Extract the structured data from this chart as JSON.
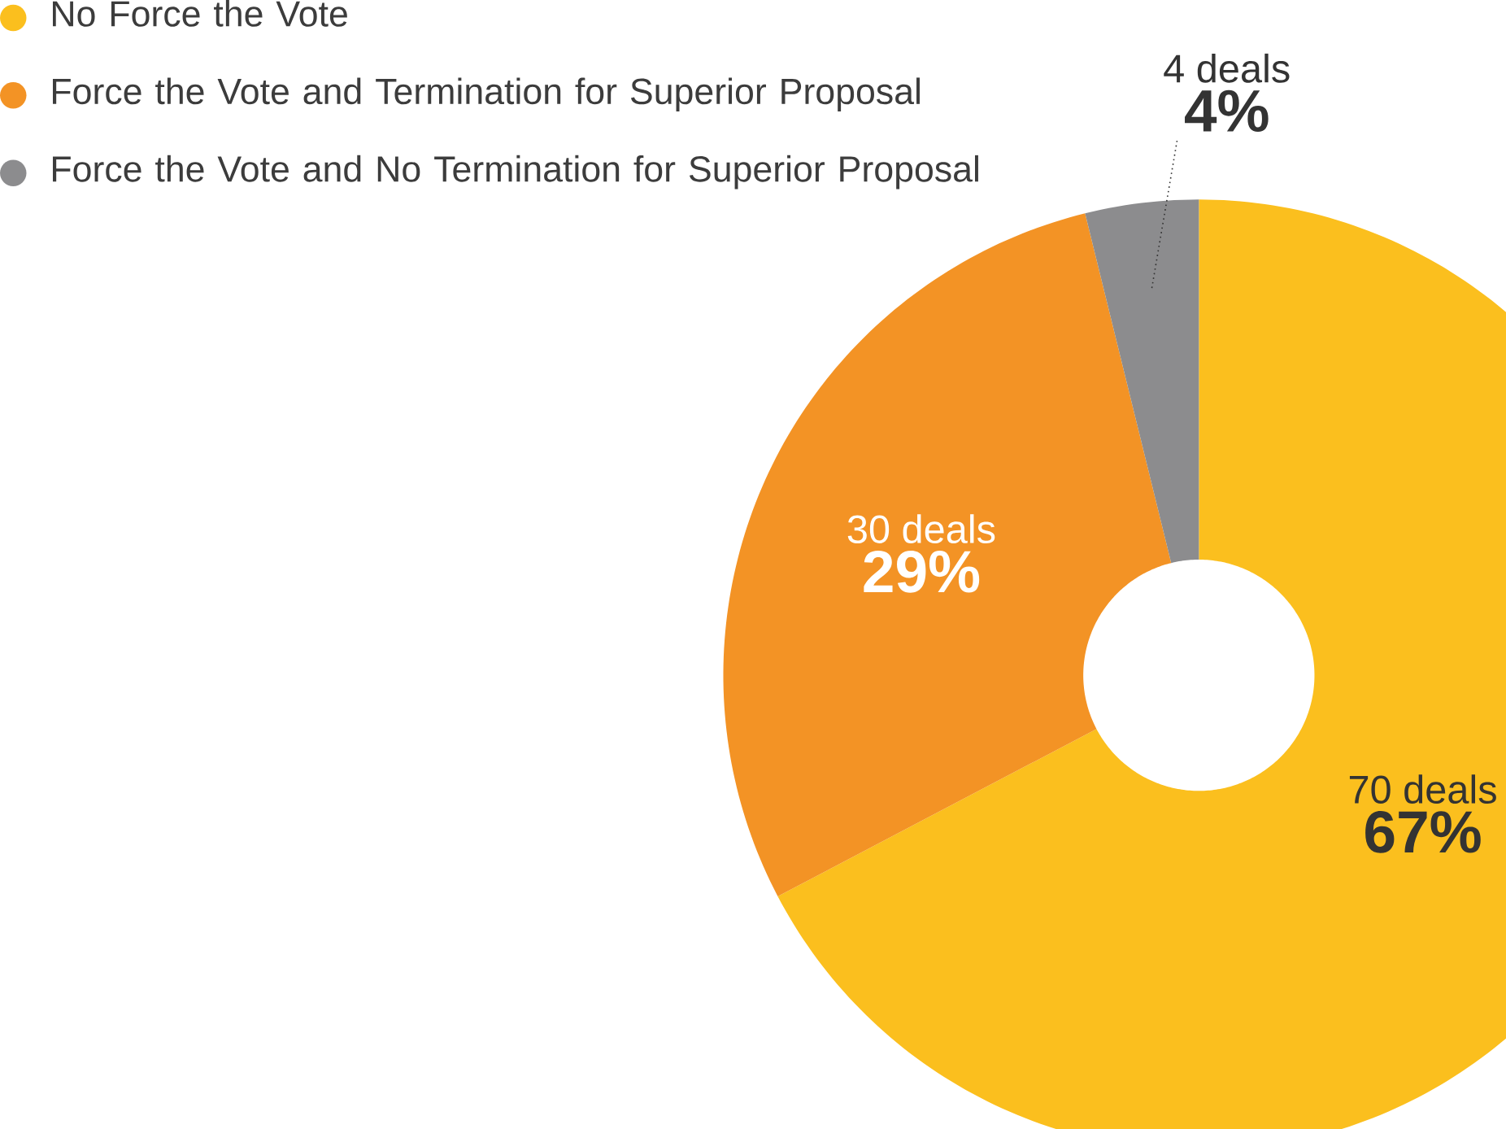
{
  "chart_data": {
    "type": "donut",
    "categories": [
      "No Force the Vote",
      "Force the Vote and Termination for Superior Proposal",
      "Force the Vote and No Termination for Superior Proposal"
    ],
    "values": [
      70,
      30,
      4
    ],
    "colors": [
      "#fbbf1e",
      "#f39325",
      "#8c8c8e"
    ],
    "value_labels": [
      "70 deals",
      "30 deals",
      "4 deals"
    ],
    "annotations": [
      "67%",
      "29%",
      "4%"
    ],
    "legend": "top left"
  }
}
